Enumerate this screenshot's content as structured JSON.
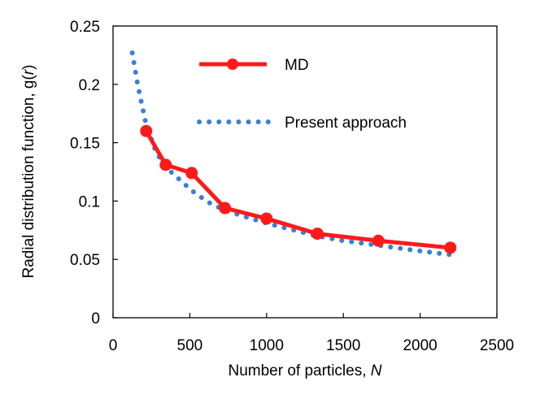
{
  "chart_data": {
    "type": "line",
    "title": "",
    "xlabel": "Number of particles, ",
    "xlabel_var": "N",
    "ylabel": "Radial distribution function, g(",
    "ylabel_var": "r",
    "ylabel_close": ")",
    "xlim": [
      0,
      2500
    ],
    "ylim": [
      0,
      0.25
    ],
    "x_ticks": [
      0,
      500,
      1000,
      1500,
      2000,
      2500
    ],
    "y_ticks": [
      0,
      0.05,
      0.1,
      0.15,
      0.2,
      0.25
    ],
    "x_tick_labels": [
      "0",
      "500",
      "1000",
      "1500",
      "2000",
      "2500"
    ],
    "y_tick_labels": [
      "0",
      "0.05",
      "0.1",
      "0.15",
      "0.2",
      "0.25"
    ],
    "grid": false,
    "legend_position": "top-right",
    "series": [
      {
        "name": "MD",
        "style": "solid-markers",
        "color": "#ff1a1a",
        "x": [
          216,
          343,
          512,
          729,
          1000,
          1331,
          1728,
          2197
        ],
        "y": [
          0.16,
          0.131,
          0.124,
          0.094,
          0.085,
          0.072,
          0.066,
          0.06
        ]
      },
      {
        "name": "Present approach",
        "style": "dotted",
        "color": "#3a7fd9",
        "x": [
          125,
          160,
          216,
          280,
          343,
          420,
          512,
          620,
          729,
          850,
          1000,
          1150,
          1331,
          1500,
          1728,
          1950,
          2197
        ],
        "y": [
          0.227,
          0.2,
          0.165,
          0.142,
          0.129,
          0.12,
          0.109,
          0.099,
          0.092,
          0.087,
          0.081,
          0.076,
          0.07,
          0.066,
          0.062,
          0.058,
          0.054
        ]
      }
    ]
  }
}
